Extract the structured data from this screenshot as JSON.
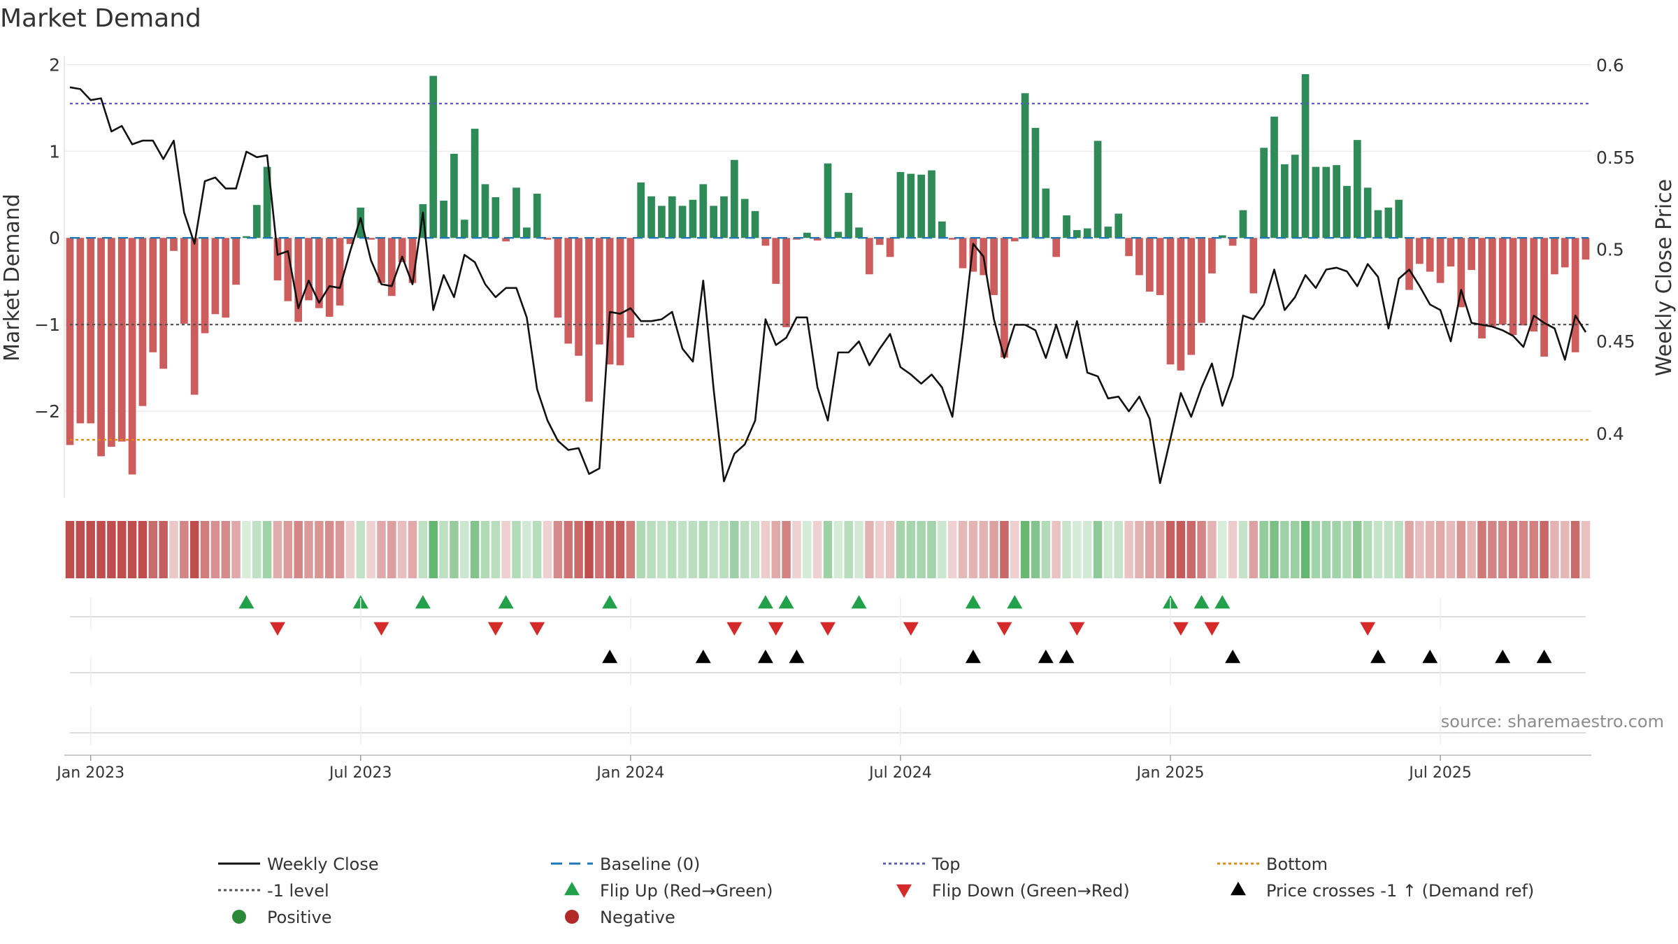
{
  "chart_data": {
    "type": "bar",
    "title": "Market Demand",
    "ylabel_left": "Market Demand",
    "ylabel_right": "Weekly Close Price",
    "source": "source: sharemaestro.com",
    "ylim_left": [
      -3.0,
      2.1
    ],
    "ylim_right": [
      0.365,
      0.605
    ],
    "yticks_left": [
      {
        "value": 2,
        "label": "2"
      },
      {
        "value": 1,
        "label": "1"
      },
      {
        "value": 0,
        "label": "0"
      },
      {
        "value": -1,
        "label": "−1"
      },
      {
        "value": -2,
        "label": "−2"
      }
    ],
    "yticks_right": [
      "0.6",
      "0.55",
      "0.5",
      "0.45",
      "0.4"
    ],
    "xticks": [
      {
        "label": "Jan 2023",
        "week": 2
      },
      {
        "label": "Jul 2023",
        "week": 28
      },
      {
        "label": "Jan 2024",
        "week": 54
      },
      {
        "label": "Jul 2024",
        "week": 80
      },
      {
        "label": "Jan 2025",
        "week": 106
      },
      {
        "label": "Jul 2025",
        "week": 132
      }
    ],
    "start_week": "2022-12-19",
    "reference_lines": {
      "baseline": 0,
      "top": 1.55,
      "bottom": -2.33,
      "minus_one": -1
    },
    "demand": [
      -2.39,
      -2.14,
      -2.14,
      -2.52,
      -2.41,
      -2.35,
      -2.73,
      -1.94,
      -1.32,
      -1.51,
      -0.15,
      -0.99,
      -1.81,
      -1.1,
      -0.88,
      -0.92,
      -0.54,
      0.02,
      0.38,
      0.82,
      -0.49,
      -0.73,
      -0.97,
      -0.72,
      -0.81,
      -0.91,
      -0.78,
      -0.07,
      0.35,
      -0.02,
      -0.52,
      -0.67,
      -0.28,
      -0.52,
      0.39,
      1.87,
      0.43,
      0.97,
      0.21,
      1.26,
      0.62,
      0.47,
      -0.04,
      0.58,
      0.12,
      0.51,
      -0.02,
      -0.92,
      -1.22,
      -1.36,
      -1.89,
      -1.23,
      -1.46,
      -1.47,
      -1.15,
      0.64,
      0.48,
      0.37,
      0.48,
      0.37,
      0.44,
      0.62,
      0.37,
      0.48,
      0.9,
      0.45,
      0.31,
      -0.09,
      -0.53,
      -1.03,
      -0.02,
      0.06,
      -0.03,
      0.86,
      0.07,
      0.52,
      0.12,
      -0.42,
      -0.08,
      -0.22,
      0.76,
      0.74,
      0.73,
      0.78,
      0.19,
      -0.02,
      -0.35,
      -0.39,
      -0.43,
      -0.66,
      -1.38,
      -0.04,
      1.67,
      1.27,
      0.57,
      -0.22,
      0.26,
      0.09,
      0.11,
      1.12,
      0.13,
      0.28,
      -0.21,
      -0.43,
      -0.62,
      -0.66,
      -1.46,
      -1.53,
      -1.35,
      -0.98,
      -0.41,
      0.03,
      -0.09,
      0.32,
      -0.64,
      1.04,
      1.4,
      0.85,
      0.96,
      1.89,
      0.82,
      0.82,
      0.84,
      0.6,
      1.13,
      0.58,
      0.32,
      0.35,
      0.44,
      -0.6,
      -0.3,
      -0.39,
      -0.52,
      -0.33,
      -0.8,
      -0.37,
      -1.16,
      -1.02,
      -1.0,
      -1.12,
      -1.01,
      -1.08,
      -1.37,
      -0.42,
      -0.34,
      -1.32,
      -0.25
    ],
    "weekly_close": [
      0.588,
      0.587,
      0.581,
      0.582,
      0.564,
      0.567,
      0.557,
      0.559,
      0.559,
      0.549,
      0.559,
      0.52,
      0.503,
      0.537,
      0.539,
      0.533,
      0.533,
      0.553,
      0.55,
      0.551,
      0.497,
      0.499,
      0.468,
      0.483,
      0.471,
      0.48,
      0.479,
      0.499,
      0.517,
      0.494,
      0.481,
      0.48,
      0.496,
      0.481,
      0.52,
      0.467,
      0.486,
      0.474,
      0.497,
      0.493,
      0.481,
      0.474,
      0.479,
      0.479,
      0.463,
      0.424,
      0.407,
      0.396,
      0.391,
      0.392,
      0.378,
      0.381,
      0.466,
      0.465,
      0.468,
      0.461,
      0.461,
      0.462,
      0.466,
      0.446,
      0.439,
      0.483,
      0.424,
      0.374,
      0.389,
      0.394,
      0.407,
      0.462,
      0.448,
      0.452,
      0.463,
      0.463,
      0.425,
      0.407,
      0.444,
      0.444,
      0.45,
      0.437,
      0.446,
      0.454,
      0.436,
      0.432,
      0.427,
      0.432,
      0.425,
      0.409,
      0.453,
      0.503,
      0.496,
      0.462,
      0.441,
      0.459,
      0.459,
      0.456,
      0.441,
      0.459,
      0.441,
      0.461,
      0.433,
      0.431,
      0.419,
      0.42,
      0.412,
      0.42,
      0.408,
      0.373,
      0.397,
      0.422,
      0.409,
      0.425,
      0.438,
      0.415,
      0.431,
      0.464,
      0.462,
      0.47,
      0.489,
      0.467,
      0.474,
      0.486,
      0.479,
      0.489,
      0.49,
      0.488,
      0.48,
      0.492,
      0.485,
      0.457,
      0.484,
      0.489,
      0.48,
      0.47,
      0.467,
      0.45,
      0.478,
      0.46,
      0.459,
      0.458,
      0.456,
      0.453,
      0.447,
      0.464,
      0.46,
      0.457,
      0.44,
      0.464,
      0.455
    ],
    "flip_up_weeks": [
      17,
      28,
      34,
      42,
      52,
      67,
      69,
      76,
      87,
      91,
      106,
      109,
      111
    ],
    "flip_down_weeks": [
      20,
      30,
      41,
      45,
      64,
      68,
      73,
      81,
      90,
      97,
      107,
      110,
      125
    ],
    "price_cross_weeks": [
      52,
      61,
      67,
      70,
      87,
      94,
      96,
      112,
      126,
      131,
      138,
      142
    ],
    "legend": [
      {
        "label": "Weekly Close",
        "symbol": "solid-line",
        "color": "#111111"
      },
      {
        "label": "Baseline (0)",
        "symbol": "dash-line",
        "color": "#1f77b4"
      },
      {
        "label": "Top",
        "symbol": "dot-line",
        "color": "#5b5bc8"
      },
      {
        "label": "Bottom",
        "symbol": "dot-line",
        "color": "#e8890c"
      },
      {
        "label": "-1 level",
        "symbol": "dot-line",
        "color": "#555555"
      },
      {
        "label": "Flip Up (Red→Green)",
        "symbol": "triangle-up",
        "color": "#22a04a"
      },
      {
        "label": "Flip Down (Green→Red)",
        "symbol": "triangle-down",
        "color": "#d42a2a"
      },
      {
        "label": "Price crosses -1 ↑ (Demand ref)",
        "symbol": "triangle-up",
        "color": "#000000"
      },
      {
        "label": "Positive",
        "symbol": "circle",
        "color": "#2a8a38"
      },
      {
        "label": "Negative",
        "symbol": "circle",
        "color": "#b02a2a"
      }
    ]
  },
  "colors": {
    "bar_positive": "#2e8b57",
    "bar_negative": "#cd5c5c",
    "close_line": "#111111",
    "baseline": "#1f77b4",
    "top": "#5b5bc8",
    "bottom": "#e8890c",
    "minus_one": "#555555",
    "flip_up": "#22a04a",
    "flip_down": "#d42a2a",
    "price_cross": "#000000"
  }
}
